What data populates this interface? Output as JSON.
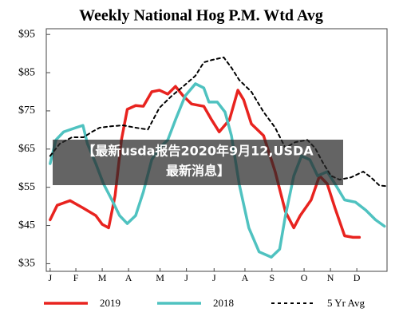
{
  "chart_data": {
    "type": "line",
    "title": "Weekly National Hog P.M. Wtd Avg",
    "xlim": [
      0.4,
      53.4
    ],
    "xticks": [
      {
        "value": 1,
        "label": "J"
      },
      {
        "value": 5,
        "label": "F"
      },
      {
        "value": 9.1,
        "label": "M"
      },
      {
        "value": 13.2,
        "label": "A"
      },
      {
        "value": 18.1,
        "label": "M"
      },
      {
        "value": 22.2,
        "label": "J"
      },
      {
        "value": 26.5,
        "label": "J"
      },
      {
        "value": 31.3,
        "label": "A"
      },
      {
        "value": 35.5,
        "label": "S"
      },
      {
        "value": 40.5,
        "label": "O"
      },
      {
        "value": 44.6,
        "label": "N"
      },
      {
        "value": 48.7,
        "label": "D"
      }
    ],
    "ylim": [
      33,
      96.5
    ],
    "yticks": [
      {
        "value": 35,
        "label": "$35"
      },
      {
        "value": 45,
        "label": "$45"
      },
      {
        "value": 55,
        "label": "$55"
      },
      {
        "value": 65,
        "label": "$65"
      },
      {
        "value": 75,
        "label": "$75"
      },
      {
        "value": 85,
        "label": "$85"
      },
      {
        "value": 95,
        "label": "$95"
      }
    ],
    "series": [
      {
        "name": "2019",
        "color": "#e8231f",
        "dash": false,
        "x": [
          1,
          2.1,
          4.1,
          6.1,
          8.1,
          9.1,
          10.1,
          11.1,
          12.1,
          13,
          14.3,
          15.5,
          16.8,
          18,
          19.3,
          20.5,
          21.7,
          23,
          24.9,
          26.1,
          27.3,
          28.9,
          30.2,
          31.1,
          32.3,
          34.2,
          36,
          37.6,
          38.9,
          39.9,
          41.6,
          42.9,
          44.1,
          45.3,
          46.8,
          48.1,
          49.1
        ],
        "values": [
          46.5,
          50.3,
          51.5,
          49.6,
          47.6,
          45.3,
          44.4,
          52.8,
          67.5,
          75.4,
          76.4,
          76.2,
          80,
          80.4,
          79.4,
          81.4,
          78.9,
          76.8,
          76.2,
          72.7,
          69.5,
          72.7,
          80.4,
          77.9,
          71.6,
          68.5,
          59.1,
          48.6,
          44.4,
          47.6,
          51.7,
          58,
          55.9,
          49.6,
          42.3,
          41.9,
          41.9
        ]
      },
      {
        "name": "2018",
        "color": "#4fc2c0",
        "dash": false,
        "x": [
          1,
          1.9,
          3.1,
          5,
          6.1,
          6.8,
          8.1,
          9.3,
          10.6,
          11.8,
          13,
          14.3,
          15.5,
          16.8,
          18,
          19.3,
          20.5,
          22,
          23.6,
          24.9,
          25.7,
          27,
          28.2,
          29.2,
          30.4,
          31.9,
          33.5,
          35.4,
          36.7,
          37.6,
          38.9,
          40.1,
          41.4,
          42.6,
          44.1,
          45.3,
          46.8,
          48.5,
          50.1,
          51.6,
          53
        ],
        "values": [
          61.2,
          67.4,
          69.5,
          70.6,
          71.2,
          66.4,
          61.2,
          55.9,
          51.7,
          47.6,
          45.5,
          47.6,
          53.8,
          62.2,
          65.3,
          67.4,
          72.7,
          78.9,
          82.1,
          81,
          77.3,
          77.3,
          74.7,
          68.5,
          55.9,
          44.4,
          38.1,
          36.7,
          38.8,
          47.6,
          58,
          63.2,
          62.2,
          58,
          59.1,
          55.9,
          51.7,
          51.1,
          49,
          46.5,
          44.8
        ]
      },
      {
        "name": "5 Yr Avg",
        "color": "#000000",
        "dash": true,
        "x": [
          1,
          2.5,
          4.4,
          6.2,
          7.5,
          8.7,
          10.6,
          12.4,
          14.3,
          16.2,
          18,
          19.9,
          21.7,
          23.6,
          24.9,
          26.1,
          28,
          29.2,
          30.4,
          32.3,
          34.2,
          36,
          37.6,
          39.1,
          41,
          42.2,
          43.5,
          44.7,
          46,
          47.8,
          49.7,
          50.9,
          52.2,
          53.2
        ],
        "values": [
          63.2,
          66.4,
          68.1,
          68.1,
          69.5,
          70.6,
          71,
          71.2,
          70.6,
          70.1,
          75.8,
          78.9,
          81.4,
          84.2,
          87.7,
          88.3,
          89,
          86.3,
          83.1,
          80,
          74.7,
          70.6,
          65.3,
          66.8,
          67.4,
          65.3,
          61.2,
          58,
          57,
          57.6,
          59.1,
          57.6,
          55.5,
          55.3
        ]
      }
    ]
  },
  "banner": {
    "lines": [
      "【最新usda报告2020年9月12,USDA",
      "最新消息】"
    ]
  }
}
